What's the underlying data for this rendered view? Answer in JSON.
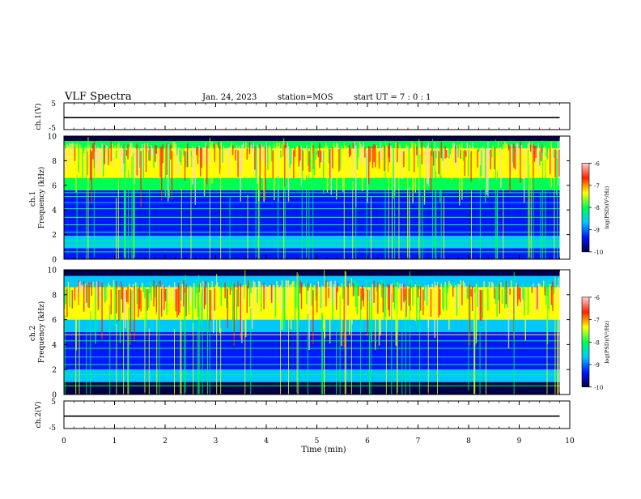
{
  "header": {
    "title": "VLF Spectra",
    "date": "Jan. 24, 2023",
    "station": "station=MOS",
    "start_ut": "start UT =  7 : 0  : 1"
  },
  "chart_data": [
    {
      "type": "line",
      "name": "waveform-ch1",
      "ylabel": "ch.1(V)",
      "ylim": [
        -5,
        5
      ],
      "yticks": [
        "5",
        "-5"
      ],
      "x": [
        0,
        9.8
      ],
      "values": [
        -0.5,
        -0.5
      ]
    },
    {
      "type": "heatmap",
      "name": "spectrogram-ch1",
      "ylabel": "ch.1\nFrequency (kHz)",
      "ylim": [
        0,
        10
      ],
      "yticks": [
        "0",
        "2",
        "4",
        "6",
        "8",
        "10"
      ],
      "xlim": [
        0,
        9.8
      ],
      "colorbar": {
        "label": "log(PSD)(V²/Hz)",
        "range": [
          -10,
          -6
        ],
        "ticks": [
          "-6",
          "-7",
          "-8",
          "-9",
          "-10"
        ],
        "colors": [
          "#00004a",
          "#0018ff",
          "#00c8ff",
          "#00ff50",
          "#ffff00",
          "#ff2200",
          "#ffd0d0"
        ]
      },
      "bands": [
        {
          "f0": 0.0,
          "f1": 0.9,
          "level": -9.6
        },
        {
          "f0": 0.9,
          "f1": 1.9,
          "level": -9.0
        },
        {
          "f0": 1.9,
          "f1": 5.6,
          "level": -9.6
        },
        {
          "f0": 5.6,
          "f1": 6.6,
          "level": -8.3
        },
        {
          "f0": 6.6,
          "f1": 9.0,
          "level": -7.2
        },
        {
          "f0": 9.0,
          "f1": 9.6,
          "level": -8.2
        },
        {
          "f0": 9.6,
          "f1": 10.0,
          "level": -9.8
        }
      ],
      "lines_khz": [
        0.6,
        1.1,
        1.5,
        2.2,
        2.8,
        3.4,
        4.1,
        4.6,
        5.1,
        5.4
      ]
    },
    {
      "type": "heatmap",
      "name": "spectrogram-ch2",
      "ylabel": "ch.2\nFrequency (kHz)",
      "ylim": [
        0,
        10
      ],
      "yticks": [
        "0",
        "2",
        "4",
        "6",
        "8",
        "10"
      ],
      "xlim": [
        0,
        9.8
      ],
      "colorbar": {
        "label": "log(PSD)(V²/Hz)",
        "range": [
          -10,
          -6
        ],
        "ticks": [
          "-6",
          "-7",
          "-8",
          "-9",
          "-10"
        ],
        "colors": [
          "#00004a",
          "#0018ff",
          "#00c8ff",
          "#00ff50",
          "#ffff00",
          "#ff2200",
          "#ffd0d0"
        ]
      },
      "bands": [
        {
          "f0": 0.0,
          "f1": 1.0,
          "level": -9.7
        },
        {
          "f0": 1.0,
          "f1": 2.0,
          "level": -9.0
        },
        {
          "f0": 2.0,
          "f1": 5.0,
          "level": -9.6
        },
        {
          "f0": 5.0,
          "f1": 6.0,
          "level": -8.6
        },
        {
          "f0": 6.0,
          "f1": 8.6,
          "level": -7.4
        },
        {
          "f0": 8.6,
          "f1": 9.5,
          "level": -8.4
        },
        {
          "f0": 9.5,
          "f1": 10.0,
          "level": -9.8
        }
      ],
      "lines_khz": [
        0.7,
        1.3,
        1.6,
        2.4,
        3.0,
        3.7,
        4.3,
        4.8
      ]
    },
    {
      "type": "line",
      "name": "waveform-ch2",
      "ylabel": "ch.2(V)",
      "ylim": [
        -5,
        5
      ],
      "yticks": [
        "5",
        "-5"
      ],
      "x": [
        0,
        9.8
      ],
      "values": [
        -0.5,
        -0.5
      ]
    }
  ],
  "xaxis": {
    "label": "Time (min)",
    "xlim": [
      0,
      10
    ],
    "ticks": [
      "0",
      "1",
      "2",
      "3",
      "4",
      "5",
      "6",
      "7",
      "8",
      "9",
      "10"
    ]
  }
}
